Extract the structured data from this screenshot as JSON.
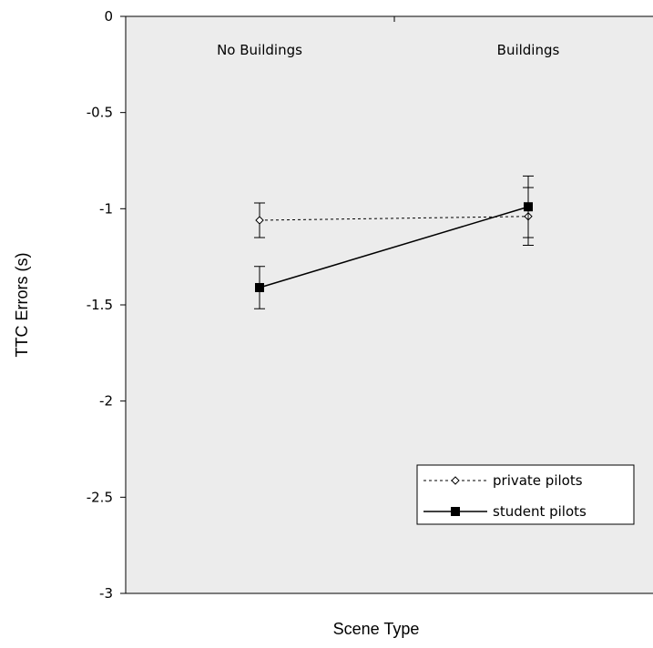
{
  "chart_data": {
    "type": "line",
    "xlabel": "Scene Type",
    "ylabel": "TTC Errors (s)",
    "categories": [
      "No Buildings",
      "Buildings"
    ],
    "ylim": [
      -3,
      0
    ],
    "yticks": [
      0,
      -0.5,
      -1,
      -1.5,
      -2,
      -2.5,
      -3
    ],
    "ytick_labels": [
      "0",
      "-0.5",
      "-1",
      "-1.5",
      "-2",
      "-2.5",
      "-3"
    ],
    "grid": false,
    "legend_position": "bottom-right",
    "series": [
      {
        "name": "private pilots",
        "values": [
          -1.06,
          -1.04
        ],
        "error": [
          0.09,
          0.15
        ],
        "line_style": "dotted",
        "marker": "open-diamond",
        "color": "#000000"
      },
      {
        "name": "student pilots",
        "values": [
          -1.41,
          -0.99
        ],
        "error": [
          0.11,
          0.16
        ],
        "line_style": "solid",
        "marker": "filled-square",
        "color": "#000000"
      }
    ]
  }
}
